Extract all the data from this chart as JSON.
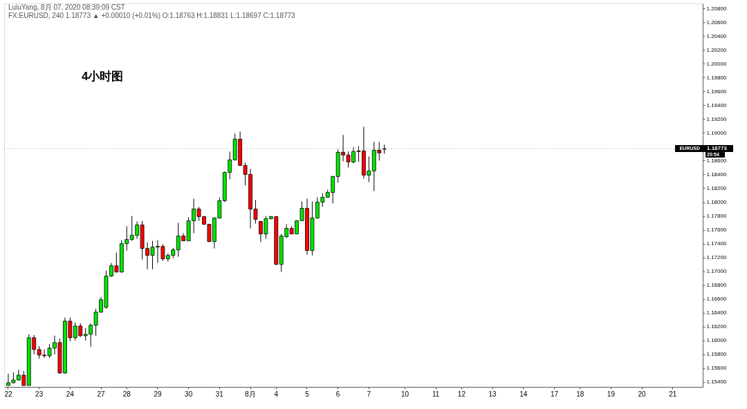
{
  "chart_data": {
    "type": "candlestick",
    "title": "4小时图",
    "annotations": [
      "LuiuYang, 8月 07, 2020 08:39:09 CST",
      "FX:EURUSD, 240 1.18773 ▲ +0.00010 (+0.01%) O:1.18763 H:1.18831 L:1.18697 C:1.18773",
      "1.18773",
      "20:54"
    ],
    "categories": [
      "22",
      null,
      null,
      null,
      null,
      null,
      "23",
      null,
      null,
      null,
      null,
      null,
      "24",
      null,
      null,
      null,
      null,
      null,
      "27",
      null,
      null,
      null,
      null,
      "28",
      null,
      null,
      null,
      null,
      null,
      "29",
      null,
      null,
      null,
      null,
      null,
      "30",
      null,
      null,
      null,
      null,
      null,
      "31",
      null,
      null,
      null,
      null,
      null,
      "8月",
      null,
      null,
      null,
      null,
      "4",
      null,
      null,
      null,
      null,
      null,
      "5",
      null,
      null,
      null,
      null,
      null,
      "6",
      null,
      null,
      null,
      null,
      null,
      "7",
      null,
      null,
      null,
      null,
      null,
      null,
      "10",
      null,
      null,
      null,
      null,
      null,
      "11",
      null,
      null,
      null,
      null,
      "12",
      null,
      null,
      null,
      null,
      null,
      "13",
      null,
      null,
      null,
      null,
      null,
      "14",
      null,
      null,
      null,
      null,
      null,
      "17",
      null,
      null,
      null,
      null,
      "18",
      null,
      null,
      null,
      null,
      null,
      "19",
      null,
      null,
      null,
      null,
      null,
      "20",
      null,
      null,
      null,
      null,
      null,
      "21",
      null,
      null,
      null,
      null,
      null
    ],
    "ohlc": [
      [
        1.1535,
        1.1552,
        1.1535,
        1.1539
      ],
      [
        1.1539,
        1.1554,
        1.1538,
        1.1543
      ],
      [
        1.1543,
        1.1558,
        1.1542,
        1.155
      ],
      [
        1.155,
        1.1556,
        1.1535,
        1.1535
      ],
      [
        1.1535,
        1.1609,
        1.1535,
        1.1604
      ],
      [
        1.1604,
        1.1608,
        1.158,
        1.1587
      ],
      [
        1.1587,
        1.1592,
        1.1574,
        1.1579
      ],
      [
        1.1579,
        1.1587,
        1.1575,
        1.1578
      ],
      [
        1.1578,
        1.1595,
        1.1575,
        1.1589
      ],
      [
        1.1589,
        1.1607,
        1.158,
        1.1597
      ],
      [
        1.1597,
        1.1603,
        1.1552,
        1.1553
      ],
      [
        1.1553,
        1.1633,
        1.1552,
        1.1628
      ],
      [
        1.1628,
        1.1633,
        1.1599,
        1.1604
      ],
      [
        1.1604,
        1.1626,
        1.16,
        1.1621
      ],
      [
        1.1621,
        1.1625,
        1.1605,
        1.1607
      ],
      [
        1.1607,
        1.1618,
        1.16,
        1.1609
      ],
      [
        1.1609,
        1.1625,
        1.1591,
        1.1622
      ],
      [
        1.1622,
        1.1646,
        1.1607,
        1.1641
      ],
      [
        1.1641,
        1.1663,
        1.164,
        1.1659
      ],
      [
        1.1648,
        1.1701,
        1.1646,
        1.1693
      ],
      [
        1.1693,
        1.1712,
        1.1692,
        1.1708
      ],
      [
        1.1708,
        1.1727,
        1.1698,
        1.1699
      ],
      [
        1.1699,
        1.1745,
        1.1698,
        1.174
      ],
      [
        1.174,
        1.1765,
        1.173,
        1.1746
      ],
      [
        1.1746,
        1.178,
        1.1744,
        1.1752
      ],
      [
        1.1752,
        1.1772,
        1.1747,
        1.1767
      ],
      [
        1.1767,
        1.1773,
        1.1717,
        1.1733
      ],
      [
        1.1733,
        1.1742,
        1.1703,
        1.1723
      ],
      [
        1.1723,
        1.1744,
        1.1703,
        1.1735
      ],
      [
        1.1735,
        1.1745,
        1.1712,
        1.1736
      ],
      [
        1.1736,
        1.1739,
        1.1715,
        1.1718
      ],
      [
        1.1718,
        1.1726,
        1.1714,
        1.1723
      ],
      [
        1.1723,
        1.1734,
        1.1719,
        1.1731
      ],
      [
        1.1731,
        1.177,
        1.1721,
        1.1751
      ],
      [
        1.1751,
        1.1755,
        1.1744,
        1.1744
      ],
      [
        1.1744,
        1.1778,
        1.1744,
        1.1773
      ],
      [
        1.1773,
        1.1805,
        1.1755,
        1.179
      ],
      [
        1.179,
        1.1793,
        1.1773,
        1.1779
      ],
      [
        1.1779,
        1.178,
        1.1767,
        1.1768
      ],
      [
        1.1768,
        1.1768,
        1.1742,
        1.1743
      ],
      [
        1.1743,
        1.1778,
        1.1733,
        1.1777
      ],
      [
        1.1777,
        1.1807,
        1.1776,
        1.1802
      ],
      [
        1.1802,
        1.1844,
        1.18,
        1.1843
      ],
      [
        1.1843,
        1.1873,
        1.1833,
        1.1861
      ],
      [
        1.1861,
        1.1899,
        1.186,
        1.1891
      ],
      [
        1.1891,
        1.1902,
        1.1852,
        1.1853
      ],
      [
        1.1853,
        1.1857,
        1.1824,
        1.184
      ],
      [
        1.184,
        1.1848,
        1.1762,
        1.179
      ],
      [
        1.179,
        1.1803,
        1.1769,
        1.1775
      ],
      [
        1.1772,
        1.1773,
        1.1742,
        1.1754
      ],
      [
        1.1754,
        1.178,
        1.1747,
        1.1776
      ],
      [
        1.1776,
        1.178,
        1.1775,
        1.1779
      ],
      [
        1.1779,
        1.178,
        1.1709,
        1.171
      ],
      [
        1.171,
        1.1754,
        1.1699,
        1.1751
      ],
      [
        1.175,
        1.1768,
        1.1748,
        1.1762
      ],
      [
        1.1762,
        1.1765,
        1.1754,
        1.1754
      ],
      [
        1.1754,
        1.1774,
        1.1754,
        1.1773
      ],
      [
        1.1773,
        1.1801,
        1.1773,
        1.1791
      ],
      [
        1.1791,
        1.1805,
        1.1724,
        1.173
      ],
      [
        1.173,
        1.1801,
        1.1723,
        1.1777
      ],
      [
        1.1777,
        1.1807,
        1.1776,
        1.18
      ],
      [
        1.18,
        1.1813,
        1.1793,
        1.1807
      ],
      [
        1.1807,
        1.1818,
        1.1806,
        1.1814
      ],
      [
        1.1814,
        1.1838,
        1.1798,
        1.1837
      ],
      [
        1.1837,
        1.1876,
        1.1828,
        1.1872
      ],
      [
        1.1872,
        1.1897,
        1.1859,
        1.1868
      ],
      [
        1.1868,
        1.1873,
        1.185,
        1.1858
      ],
      [
        1.1858,
        1.1879,
        1.1856,
        1.1873
      ],
      [
        1.1873,
        1.1881,
        1.1858,
        1.1874
      ],
      [
        1.1874,
        1.1909,
        1.1834,
        1.1839
      ],
      [
        1.1839,
        1.1866,
        1.1829,
        1.1845
      ],
      [
        1.1845,
        1.1887,
        1.1816,
        1.1875
      ],
      [
        1.1875,
        1.1887,
        1.186,
        1.1871
      ],
      [
        1.18763,
        1.18831,
        1.18697,
        1.18773
      ],
      null,
      null,
      null,
      null,
      null,
      null,
      null,
      null,
      null,
      null,
      null,
      null,
      null,
      null,
      null,
      null,
      null,
      null,
      null,
      null,
      null,
      null,
      null,
      null,
      null,
      null,
      null,
      null,
      null,
      null,
      null,
      null,
      null,
      null,
      null,
      null,
      null,
      null,
      null,
      null,
      null,
      null,
      null,
      null,
      null,
      null,
      null,
      null,
      null,
      null,
      null,
      null,
      null,
      null,
      null,
      null,
      null,
      null,
      null,
      null,
      null
    ],
    "colors": [
      "#00e600",
      "#00e600",
      "#00e600",
      "#ff0000",
      "#00e600",
      "#ff0000",
      "#ff0000",
      "#ff0000",
      "#00e600",
      "#00e600",
      "#ff0000",
      "#00e600",
      "#ff0000",
      "#00e600",
      "#ff0000",
      "#00e600",
      "#00e600",
      "#00e600",
      "#00e600",
      "#00e600",
      "#00e600",
      "#ff0000",
      "#00e600",
      "#00e600",
      "#00e600",
      "#00e600",
      "#ff0000",
      "#ff0000",
      "#00e600",
      "#00e600",
      "#ff0000",
      "#00e600",
      "#00e600",
      "#00e600",
      "#ff0000",
      "#00e600",
      "#00e600",
      "#ff0000",
      "#ff0000",
      "#ff0000",
      "#00e600",
      "#00e600",
      "#00e600",
      "#00e600",
      "#00e600",
      "#ff0000",
      "#ff0000",
      "#ff0000",
      "#ff0000",
      "#ff0000",
      "#00e600",
      "#00e600",
      "#ff0000",
      "#00e600",
      "#00e600",
      "#ff0000",
      "#00e600",
      "#00e600",
      "#ff0000",
      "#00e600",
      "#00e600",
      "#00e600",
      "#00e600",
      "#00e600",
      "#00e600",
      "#ff0000",
      "#ff0000",
      "#00e600",
      "#00e600",
      "#ff0000",
      "#00e600",
      "#00e600",
      "#ff0000",
      "#00e600",
      null,
      null,
      null,
      null,
      null,
      null,
      null,
      null,
      null,
      null,
      null,
      null,
      null,
      null,
      null,
      null,
      null,
      null,
      null,
      null,
      null,
      null,
      null,
      null,
      null,
      null,
      null,
      null,
      null,
      null,
      null,
      null,
      null,
      null,
      null,
      null,
      null,
      null,
      null,
      null,
      null,
      null,
      null,
      null,
      null,
      null,
      null,
      null,
      null,
      null,
      null,
      null,
      null,
      null,
      null,
      null,
      null,
      null,
      null,
      null,
      null
    ],
    "ylim": [
      1.1533,
      1.2087
    ],
    "yticks": [
      {
        "value": 1.154,
        "label": "1.15400"
      },
      {
        "value": 1.156,
        "label": "1.15600"
      },
      {
        "value": 1.158,
        "label": "1.15800"
      },
      {
        "value": 1.16,
        "label": "1.16000"
      },
      {
        "value": 1.162,
        "label": "1.16200"
      },
      {
        "value": 1.164,
        "label": "1.16400"
      },
      {
        "value": 1.166,
        "label": "1.16600"
      },
      {
        "value": 1.168,
        "label": "1.16800"
      },
      {
        "value": 1.17,
        "label": "1.17000"
      },
      {
        "value": 1.172,
        "label": "1.17200"
      },
      {
        "value": 1.174,
        "label": "1.17400"
      },
      {
        "value": 1.176,
        "label": "1.17600"
      },
      {
        "value": 1.178,
        "label": "1.17800"
      },
      {
        "value": 1.18,
        "label": "1.18000"
      },
      {
        "value": 1.182,
        "label": "1.18200"
      },
      {
        "value": 1.184,
        "label": "1.18400"
      },
      {
        "value": 1.186,
        "label": "1.18600"
      },
      {
        "value": 1.188,
        "label": null
      },
      {
        "value": 1.19,
        "label": "1.19000"
      },
      {
        "value": 1.192,
        "label": "1.19200"
      },
      {
        "value": 1.194,
        "label": "1.19400"
      },
      {
        "value": 1.196,
        "label": "1.19600"
      },
      {
        "value": 1.198,
        "label": "1.19800"
      },
      {
        "value": 1.2,
        "label": "1.20000"
      },
      {
        "value": 1.202,
        "label": "1.20200"
      },
      {
        "value": 1.204,
        "label": "1.20400"
      },
      {
        "value": 1.206,
        "label": "1.20600"
      },
      {
        "value": 1.208,
        "label": "1.20800"
      }
    ],
    "ref_lines": [
      {
        "axis": "y",
        "value": 1.18773,
        "label": "EURUSD",
        "line_style": "dotted",
        "color": "#9e9e9e"
      }
    ],
    "grid": false
  }
}
